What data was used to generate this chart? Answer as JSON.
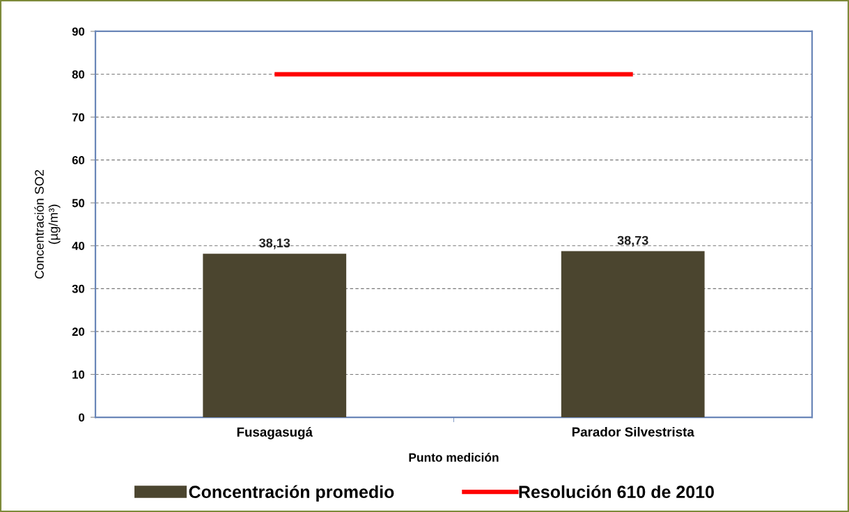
{
  "chart_data": {
    "type": "bar",
    "xlabel": "Punto medición",
    "ylabel": "Concentración SO2\n(µg/m³)",
    "categories": [
      "Fusagasugá",
      "Parador Silvestrista"
    ],
    "series": [
      {
        "name": "Concentración promedio",
        "color": "#4b452f",
        "values": [
          38.13,
          38.73
        ],
        "value_labels": [
          "38,13",
          "38,73"
        ]
      },
      {
        "name": "Resolución 610 de 2010",
        "type": "line",
        "color": "#ff0000",
        "values": [
          80,
          80
        ],
        "line_style": "solid"
      }
    ],
    "ylim": [
      0,
      90
    ],
    "yticks": [
      0,
      10,
      20,
      30,
      40,
      50,
      60,
      70,
      80,
      90
    ],
    "grid": "y",
    "legend": "bottom"
  }
}
